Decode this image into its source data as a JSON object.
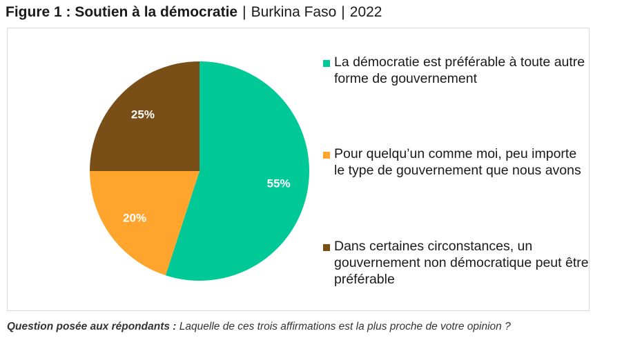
{
  "title": {
    "bold": "Figure 1 : Soutien à la démocratie",
    "sep1": "|",
    "country": "Burkina Faso",
    "sep2": "|",
    "year": "2022"
  },
  "chart_data": {
    "type": "pie",
    "title": "Figure 1 : Soutien à la démocratie | Burkina Faso | 2022",
    "start_angle_deg": 0,
    "direction": "clockwise",
    "slices": [
      {
        "label": "La démocratie est préférable à toute autre forme de gouvernement",
        "value": 55,
        "value_label": "55%",
        "color": "#00c896"
      },
      {
        "label": "Pour quelqu’un comme moi, peu importe le type de gouvernement que nous avons",
        "value": 20,
        "value_label": "20%",
        "color": "#ffa42c"
      },
      {
        "label": "Dans certaines circonstances, un gouvernement non démocratique peut être préférable",
        "value": 25,
        "value_label": "25%",
        "color": "#7a4e17"
      }
    ],
    "legend_position": "right"
  },
  "legend": {
    "items": [
      {
        "text": "La démocratie est préférable à toute autre forme de gouvernement",
        "color": "#00c896"
      },
      {
        "text": "Pour quelqu’un comme moi, peu importe le type de gouvernement que nous avons",
        "color": "#ffa42c"
      },
      {
        "text": "Dans certaines circonstances, un gouvernement non démocratique peut être préférable",
        "color": "#7a4e17"
      }
    ]
  },
  "caption": {
    "label": "Question posée aux répondants :",
    "text": "Laquelle de ces trois affirmations est la plus proche de votre opinion ?"
  },
  "colors": {
    "label_text": "#ffffff",
    "frame_border": "#d9d9d9"
  }
}
